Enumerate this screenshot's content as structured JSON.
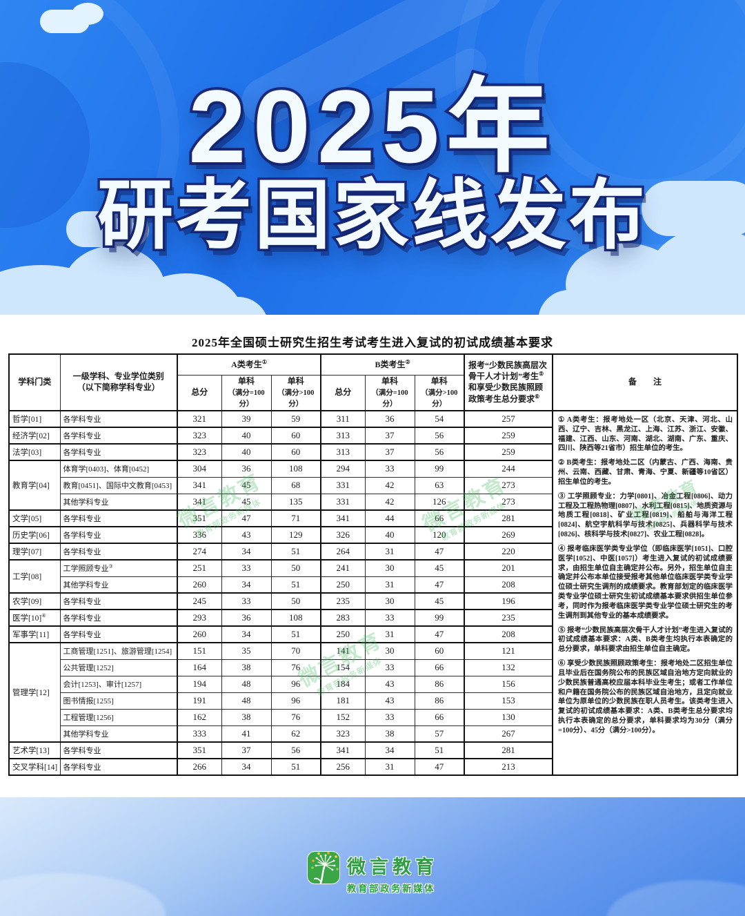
{
  "banner": {
    "line1": "2025年",
    "line2": "研考国家线发布"
  },
  "table": {
    "title": "2025年全国硕士研究生招生考试考生进入复试的初试成绩基本要求",
    "headers": {
      "discipline": "学科门类",
      "major_line1": "一级学科、专业学位类别",
      "major_line2": "（以下简称学科专业）",
      "group_a": "A类考生",
      "group_a_sup": "①",
      "group_b": "B类考生",
      "group_b_sup": "②",
      "total": "总分",
      "single": "单科",
      "single100_paren": "（满分=100分）",
      "single_over100_paren": "（满分>100分）",
      "minority_p1": "报考“少数民族高层次骨干人才计划”考生",
      "minority_s1": "⑤",
      "minority_p2": "和享受少数民族照顾政策考生总分要求",
      "minority_s2": "⑥",
      "remarks": "备　　注"
    },
    "groups": [
      {
        "discipline": "哲学[01]",
        "sup": "",
        "items": [
          {
            "major": "各学科专业",
            "sup": "",
            "a": [
              321,
              39,
              59
            ],
            "b": [
              311,
              36,
              54
            ],
            "minority": 257
          }
        ]
      },
      {
        "discipline": "经济学[02]",
        "sup": "",
        "items": [
          {
            "major": "各学科专业",
            "sup": "",
            "a": [
              323,
              40,
              60
            ],
            "b": [
              313,
              37,
              56
            ],
            "minority": 259
          }
        ]
      },
      {
        "discipline": "法学[03]",
        "sup": "",
        "items": [
          {
            "major": "各学科专业",
            "sup": "",
            "a": [
              323,
              40,
              60
            ],
            "b": [
              313,
              37,
              56
            ],
            "minority": 259
          }
        ]
      },
      {
        "discipline": "教育学[04]",
        "sup": "",
        "items": [
          {
            "major": "体育学[0403]、体育[0452]",
            "sup": "",
            "a": [
              304,
              36,
              108
            ],
            "b": [
              294,
              33,
              99
            ],
            "minority": 244
          },
          {
            "major": "教育[0451]、国际中文教育[0453]",
            "sup": "",
            "a": [
              341,
              45,
              68
            ],
            "b": [
              331,
              42,
              63
            ],
            "minority": 273
          },
          {
            "major": "其他学科专业",
            "sup": "",
            "a": [
              341,
              45,
              135
            ],
            "b": [
              331,
              42,
              126
            ],
            "minority": 273
          }
        ]
      },
      {
        "discipline": "文学[05]",
        "sup": "",
        "items": [
          {
            "major": "各学科专业",
            "sup": "",
            "a": [
              351,
              47,
              71
            ],
            "b": [
              341,
              44,
              66
            ],
            "minority": 281
          }
        ]
      },
      {
        "discipline": "历史学[06]",
        "sup": "",
        "items": [
          {
            "major": "各学科专业",
            "sup": "",
            "a": [
              336,
              43,
              129
            ],
            "b": [
              326,
              40,
              120
            ],
            "minority": 269
          }
        ]
      },
      {
        "discipline": "理学[07]",
        "sup": "",
        "items": [
          {
            "major": "各学科专业",
            "sup": "",
            "a": [
              274,
              34,
              51
            ],
            "b": [
              264,
              31,
              47
            ],
            "minority": 220
          }
        ]
      },
      {
        "discipline": "工学[08]",
        "sup": "",
        "items": [
          {
            "major": "工学照顾专业",
            "sup": "③",
            "a": [
              251,
              33,
              50
            ],
            "b": [
              241,
              30,
              45
            ],
            "minority": 201
          },
          {
            "major": "其他学科专业",
            "sup": "",
            "a": [
              260,
              34,
              51
            ],
            "b": [
              250,
              31,
              47
            ],
            "minority": 208
          }
        ]
      },
      {
        "discipline": "农学[09]",
        "sup": "",
        "items": [
          {
            "major": "各学科专业",
            "sup": "",
            "a": [
              245,
              33,
              50
            ],
            "b": [
              235,
              30,
              45
            ],
            "minority": 196
          }
        ]
      },
      {
        "discipline": "医学[10]",
        "sup": "④",
        "items": [
          {
            "major": "各学科专业",
            "sup": "",
            "a": [
              293,
              36,
              108
            ],
            "b": [
              283,
              33,
              99
            ],
            "minority": 235
          }
        ]
      },
      {
        "discipline": "军事学[11]",
        "sup": "",
        "items": [
          {
            "major": "各学科专业",
            "sup": "",
            "a": [
              260,
              34,
              51
            ],
            "b": [
              250,
              31,
              47
            ],
            "minority": 208
          }
        ]
      },
      {
        "discipline": "管理学[12]",
        "sup": "",
        "items": [
          {
            "major": "工商管理[1251]、旅游管理[1254]",
            "sup": "",
            "a": [
              151,
              35,
              70
            ],
            "b": [
              141,
              30,
              60
            ],
            "minority": 121
          },
          {
            "major": "公共管理[1252]",
            "sup": "",
            "a": [
              164,
              38,
              76
            ],
            "b": [
              154,
              33,
              66
            ],
            "minority": 132
          },
          {
            "major": "会计[1253]、审计[1257]",
            "sup": "",
            "a": [
              194,
              48,
              96
            ],
            "b": [
              184,
              43,
              86
            ],
            "minority": 156
          },
          {
            "major": "图书情报[1255]",
            "sup": "",
            "a": [
              191,
              48,
              96
            ],
            "b": [
              181,
              43,
              86
            ],
            "minority": 153
          },
          {
            "major": "工程管理[1256]",
            "sup": "",
            "a": [
              162,
              38,
              76
            ],
            "b": [
              152,
              33,
              66
            ],
            "minority": 130
          },
          {
            "major": "其他学科专业",
            "sup": "",
            "a": [
              333,
              41,
              62
            ],
            "b": [
              323,
              38,
              57
            ],
            "minority": 267
          }
        ]
      },
      {
        "discipline": "艺术学[13]",
        "sup": "",
        "items": [
          {
            "major": "各学科专业",
            "sup": "",
            "a": [
              351,
              37,
              56
            ],
            "b": [
              341,
              34,
              51
            ],
            "minority": 281
          }
        ]
      },
      {
        "discipline": "交叉学科[14]",
        "sup": "",
        "items": [
          {
            "major": "各学科专业",
            "sup": "",
            "a": [
              266,
              34,
              51
            ],
            "b": [
              256,
              31,
              47
            ],
            "minority": 213
          }
        ]
      }
    ],
    "notes": [
      "① A类考生：报考地处一区（北京、天津、河北、山西、辽宁、吉林、黑龙江、上海、江苏、浙江、安徽、福建、江西、山东、河南、湖北、湖南、广东、重庆、四川、陕西等21省市）招生单位的考生。",
      "② B类考生：报考地处二区（内蒙古、广西、海南、贵州、云南、西藏、甘肃、青海、宁夏、新疆等10省区）招生单位的考生。",
      "③ 工学照顾专业：力学[0801]、冶金工程[0806]、动力工程及工程热物理[0807]、水利工程[0815]、地质资源与地质工程[0818]、矿业工程[0819]、船舶与海洋工程[0824]、航空宇航科学与技术[0825]、兵器科学与技术[0826]、核科学与技术[0827]、农业工程[0828]。",
      "④ 报考临床医学类专业学位（即临床医学[1051]、口腔医学[1052]、中医[1057]）考生进入复试的初试成绩要求，由招生单位自主确定并公布。另外，招生单位自主确定并公布本单位接受报考其他单位临床医学类专业学位硕士研究生调剂的成绩要求。教育部划定的临床医学类专业学位硕士研究生初试成绩基本要求供招生单位参考，同时作为报考临床医学类专业学位硕士研究生的考生调剂到其他专业的基本成绩要求。",
      "⑤ 报考“少数民族高层次骨干人才计划”考生进入复试的初试成绩基本要求：A类、B类考生均执行本表确定的总分要求，单科要求由招生单位自主确定。",
      "⑥ 享受少数民族照顾政策考生：报考地处二区招生单位且毕业后在国务院公布的民族区域自治地方定向就业的少数民族普通高校应届本科毕业生考生；或者工作单位和户籍在国务院公布的民族区域自治地方，且定向就业单位为原单位的少数民族在职人员考生。该类考生进入复试的初试成绩基本要求：A类、B类考生总分要求均执行本表确定的总分要求，单科要求均为30分（满分=100分）、45分（满分>100分）。"
    ],
    "watermark_big": "微言教育",
    "watermark_small": "教育部政务新媒体"
  },
  "footer": {
    "brand": "微言教育",
    "sub": "教育部政务新媒体"
  }
}
